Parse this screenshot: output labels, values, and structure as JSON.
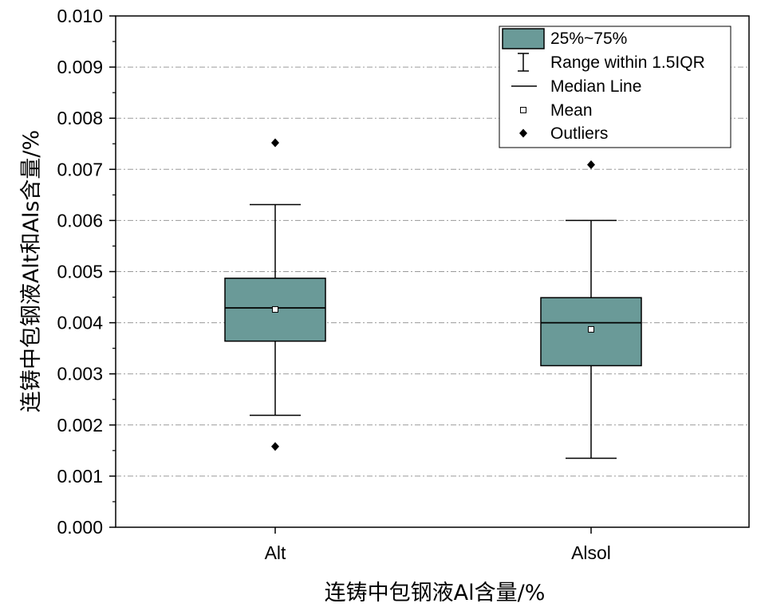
{
  "chart_data": {
    "type": "box",
    "xlabel": "连铸中包钢液Al含量/%",
    "ylabel": "连铸中包钢液Alt和Als含量/%",
    "ylim": [
      0,
      0.01
    ],
    "yticks": [
      "0.000",
      "0.001",
      "0.002",
      "0.003",
      "0.004",
      "0.005",
      "0.006",
      "0.007",
      "0.008",
      "0.009",
      "0.010"
    ],
    "categories": [
      "Alt",
      "Alsol"
    ],
    "boxes": [
      {
        "category": "Alt",
        "whisker_low": 0.00219,
        "q1": 0.00364,
        "median": 0.00429,
        "q3": 0.00487,
        "whisker_high": 0.00631,
        "mean": 0.00426,
        "outliers": [
          0.00752,
          0.00158
        ]
      },
      {
        "category": "Alsol",
        "whisker_low": 0.00135,
        "q1": 0.00316,
        "median": 0.004,
        "q3": 0.00449,
        "whisker_high": 0.006,
        "mean": 0.00387,
        "outliers": [
          0.00709
        ]
      }
    ],
    "grid": "horizontal dash-dot at major ticks",
    "box_color": "#6a9a98",
    "legend_position": "top-right",
    "legend": [
      {
        "symbol": "box",
        "label": "25%~75%"
      },
      {
        "symbol": "whisker",
        "label": "Range within 1.5IQR"
      },
      {
        "symbol": "line",
        "label": "Median Line"
      },
      {
        "symbol": "square",
        "label": "Mean"
      },
      {
        "symbol": "diamond",
        "label": "Outliers"
      }
    ]
  }
}
